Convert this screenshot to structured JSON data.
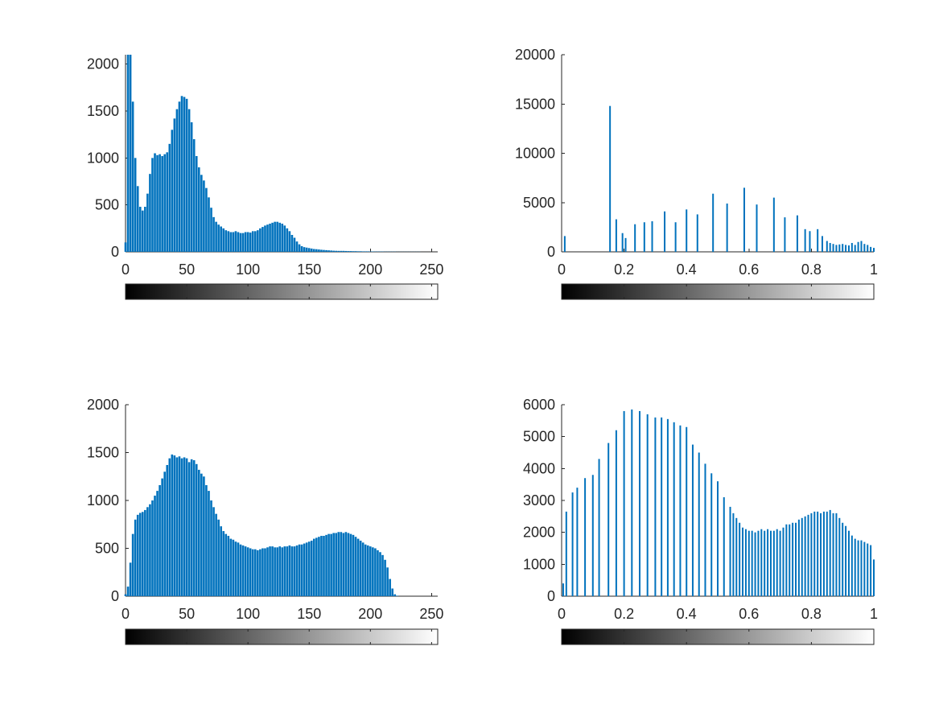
{
  "chart_data": [
    {
      "type": "bar",
      "title": "",
      "xlabel": "",
      "ylabel": "",
      "xlim": [
        0,
        255
      ],
      "ylim": [
        0,
        2100
      ],
      "xticks": [
        0,
        50,
        100,
        150,
        200,
        250
      ],
      "xtick_labels": [
        "0",
        "50",
        "100",
        "150",
        "200",
        "250"
      ],
      "yticks": [
        0,
        500,
        1000,
        1500,
        2000
      ],
      "ytick_labels": [
        "0",
        "500",
        "1000",
        "1500",
        "2000"
      ],
      "grid": false,
      "bar_color": "#0072bd",
      "colorbar": {
        "min": 0,
        "max": 255,
        "ticks": [
          0,
          50,
          100,
          150,
          200,
          250
        ],
        "colormap": "gray"
      },
      "series": [
        {
          "x": [
            0,
            2,
            4,
            6,
            8,
            10,
            12,
            14,
            16,
            18,
            20,
            22,
            24,
            26,
            28,
            30,
            32,
            34,
            36,
            38,
            40,
            42,
            44,
            46,
            48,
            50,
            52,
            54,
            56,
            58,
            60,
            62,
            64,
            66,
            68,
            70,
            72,
            74,
            76,
            78,
            80,
            82,
            84,
            86,
            88,
            90,
            92,
            94,
            96,
            98,
            100,
            102,
            104,
            106,
            108,
            110,
            112,
            114,
            116,
            118,
            120,
            122,
            124,
            126,
            128,
            130,
            132,
            134,
            136,
            138,
            140,
            142,
            144,
            146,
            148,
            150,
            152,
            154,
            156,
            158,
            160,
            162,
            164,
            166,
            168,
            170,
            172,
            174,
            176,
            178,
            180,
            182,
            184,
            186,
            188,
            190,
            192,
            194,
            196,
            198,
            200,
            202,
            204,
            206,
            208,
            210,
            212,
            214,
            216,
            218,
            220,
            222,
            224,
            226,
            228,
            230,
            232,
            234,
            236,
            238,
            240,
            242,
            244,
            246,
            248,
            250,
            252,
            254
          ],
          "values": [
            100,
            2100,
            2100,
            1600,
            1000,
            700,
            480,
            440,
            480,
            620,
            830,
            1000,
            1050,
            1030,
            1040,
            1020,
            1040,
            1060,
            1150,
            1300,
            1420,
            1520,
            1600,
            1660,
            1650,
            1630,
            1520,
            1380,
            1200,
            1020,
            900,
            820,
            760,
            680,
            580,
            470,
            370,
            320,
            290,
            270,
            250,
            230,
            220,
            210,
            210,
            220,
            210,
            200,
            200,
            210,
            210,
            205,
            220,
            220,
            230,
            250,
            265,
            280,
            290,
            300,
            310,
            320,
            320,
            310,
            300,
            280,
            250,
            220,
            180,
            150,
            110,
            80,
            60,
            50,
            45,
            40,
            35,
            30,
            28,
            25,
            22,
            20,
            18,
            16,
            14,
            12,
            11,
            10,
            10,
            10,
            9,
            8,
            8,
            7,
            7,
            6,
            6,
            5,
            5,
            5,
            4,
            4,
            3,
            3,
            3,
            3,
            2,
            2,
            2,
            2,
            2,
            1,
            1,
            1,
            1,
            1,
            1,
            1,
            1,
            1,
            1,
            0,
            0,
            0,
            0,
            0,
            0,
            0
          ]
        }
      ]
    },
    {
      "type": "bar",
      "title": "",
      "xlabel": "",
      "ylabel": "",
      "xlim": [
        0,
        1
      ],
      "ylim": [
        0,
        20000
      ],
      "xticks": [
        0,
        0.2,
        0.4,
        0.6,
        0.8,
        1
      ],
      "xtick_labels": [
        "0",
        "0.2",
        "0.4",
        "0.6",
        "0.8",
        "1"
      ],
      "yticks": [
        0,
        5000,
        10000,
        15000,
        20000
      ],
      "ytick_labels": [
        "0",
        "5000",
        "10000",
        "15000",
        "20000"
      ],
      "grid": false,
      "bar_color": "#0072bd",
      "colorbar": {
        "min": 0,
        "max": 1,
        "ticks": [
          0,
          0.2,
          0.4,
          0.6,
          0.8,
          1
        ],
        "colormap": "gray"
      },
      "series": [
        {
          "x": [
            0.01,
            0.155,
            0.175,
            0.195,
            0.205,
            0.235,
            0.265,
            0.29,
            0.33,
            0.365,
            0.4,
            0.435,
            0.485,
            0.53,
            0.585,
            0.625,
            0.68,
            0.715,
            0.755,
            0.78,
            0.795,
            0.82,
            0.835,
            0.85,
            0.86,
            0.87,
            0.88,
            0.89,
            0.9,
            0.91,
            0.92,
            0.93,
            0.94,
            0.95,
            0.96,
            0.97,
            0.98,
            0.99,
            1.0
          ],
          "values": [
            1600,
            14800,
            3300,
            1900,
            1400,
            2800,
            3000,
            3100,
            4100,
            3000,
            4300,
            3800,
            5900,
            4900,
            6500,
            4800,
            5500,
            3500,
            3700,
            2300,
            2100,
            2300,
            1600,
            1100,
            900,
            800,
            700,
            750,
            800,
            700,
            650,
            900,
            700,
            1000,
            1100,
            800,
            700,
            500,
            400
          ]
        }
      ]
    },
    {
      "type": "bar",
      "title": "",
      "xlabel": "",
      "ylabel": "",
      "xlim": [
        0,
        255
      ],
      "ylim": [
        0,
        2000
      ],
      "xticks": [
        0,
        50,
        100,
        150,
        200,
        250
      ],
      "xtick_labels": [
        "0",
        "50",
        "100",
        "150",
        "200",
        "250"
      ],
      "yticks": [
        0,
        500,
        1000,
        1500,
        2000
      ],
      "ytick_labels": [
        "0",
        "500",
        "1000",
        "1500",
        "2000"
      ],
      "grid": false,
      "bar_color": "#0072bd",
      "colorbar": {
        "min": 0,
        "max": 255,
        "ticks": [
          0,
          50,
          100,
          150,
          200,
          250
        ],
        "colormap": "gray"
      },
      "series": [
        {
          "x": [
            0,
            2,
            4,
            6,
            8,
            10,
            12,
            14,
            16,
            18,
            20,
            22,
            24,
            26,
            28,
            30,
            32,
            34,
            36,
            38,
            40,
            42,
            44,
            46,
            48,
            50,
            52,
            54,
            56,
            58,
            60,
            62,
            64,
            66,
            68,
            70,
            72,
            74,
            76,
            78,
            80,
            82,
            84,
            86,
            88,
            90,
            92,
            94,
            96,
            98,
            100,
            102,
            104,
            106,
            108,
            110,
            112,
            114,
            116,
            118,
            120,
            122,
            124,
            126,
            128,
            130,
            132,
            134,
            136,
            138,
            140,
            142,
            144,
            146,
            148,
            150,
            152,
            154,
            156,
            158,
            160,
            162,
            164,
            166,
            168,
            170,
            172,
            174,
            176,
            178,
            180,
            182,
            184,
            186,
            188,
            190,
            192,
            194,
            196,
            198,
            200,
            202,
            204,
            206,
            208,
            210,
            212,
            214,
            216,
            218,
            220,
            222,
            224,
            226,
            228,
            230,
            232,
            234,
            236,
            238,
            240,
            242,
            244,
            246,
            248,
            250,
            252,
            254
          ],
          "values": [
            20,
            100,
            350,
            650,
            800,
            850,
            870,
            880,
            900,
            930,
            960,
            1000,
            1050,
            1100,
            1160,
            1230,
            1300,
            1370,
            1440,
            1480,
            1470,
            1450,
            1460,
            1440,
            1450,
            1440,
            1400,
            1430,
            1420,
            1380,
            1320,
            1280,
            1250,
            1160,
            1100,
            1000,
            930,
            860,
            800,
            730,
            680,
            650,
            630,
            600,
            590,
            570,
            560,
            540,
            530,
            520,
            510,
            500,
            490,
            490,
            480,
            490,
            500,
            500,
            510,
            520,
            520,
            510,
            510,
            520,
            510,
            520,
            520,
            530,
            520,
            520,
            530,
            540,
            540,
            550,
            560,
            570,
            580,
            600,
            610,
            620,
            630,
            630,
            640,
            650,
            650,
            660,
            660,
            670,
            670,
            660,
            670,
            660,
            650,
            640,
            620,
            600,
            580,
            560,
            540,
            530,
            520,
            510,
            500,
            480,
            460,
            430,
            380,
            300,
            180,
            80,
            20,
            5,
            0,
            0,
            0,
            0,
            0,
            0,
            0,
            0,
            0,
            0,
            0,
            0,
            0,
            0,
            0,
            0
          ]
        }
      ]
    },
    {
      "type": "bar",
      "title": "",
      "xlabel": "",
      "ylabel": "",
      "xlim": [
        0,
        1
      ],
      "ylim": [
        0,
        6000
      ],
      "xticks": [
        0,
        0.2,
        0.4,
        0.6,
        0.8,
        1
      ],
      "xtick_labels": [
        "0",
        "0.2",
        "0.4",
        "0.6",
        "0.8",
        "1"
      ],
      "yticks": [
        0,
        1000,
        2000,
        3000,
        4000,
        5000,
        6000
      ],
      "ytick_labels": [
        "0",
        "1000",
        "2000",
        "3000",
        "4000",
        "5000",
        "6000"
      ],
      "grid": false,
      "bar_color": "#0072bd",
      "colorbar": {
        "min": 0,
        "max": 1,
        "ticks": [
          0,
          0.2,
          0.4,
          0.6,
          0.8,
          1
        ],
        "colormap": "gray"
      },
      "series": [
        {
          "x": [
            0.005,
            0.015,
            0.035,
            0.05,
            0.075,
            0.1,
            0.12,
            0.15,
            0.175,
            0.2,
            0.225,
            0.25,
            0.275,
            0.3,
            0.32,
            0.34,
            0.36,
            0.38,
            0.4,
            0.42,
            0.44,
            0.46,
            0.48,
            0.5,
            0.52,
            0.54,
            0.55,
            0.56,
            0.57,
            0.58,
            0.59,
            0.6,
            0.61,
            0.62,
            0.63,
            0.64,
            0.65,
            0.66,
            0.67,
            0.68,
            0.69,
            0.7,
            0.71,
            0.72,
            0.73,
            0.74,
            0.75,
            0.76,
            0.77,
            0.78,
            0.79,
            0.8,
            0.81,
            0.82,
            0.83,
            0.84,
            0.85,
            0.86,
            0.87,
            0.88,
            0.89,
            0.9,
            0.91,
            0.92,
            0.93,
            0.94,
            0.95,
            0.96,
            0.97,
            0.98,
            0.99,
            1.0
          ],
          "values": [
            400,
            2650,
            3250,
            3400,
            3700,
            3800,
            4300,
            4800,
            5200,
            5800,
            5850,
            5800,
            5700,
            5600,
            5600,
            5550,
            5450,
            5350,
            5300,
            4750,
            4500,
            4150,
            3850,
            3600,
            3100,
            2800,
            2600,
            2450,
            2300,
            2150,
            2100,
            2050,
            2050,
            2000,
            2050,
            2100,
            2050,
            2100,
            2050,
            2050,
            2100,
            2050,
            2150,
            2250,
            2250,
            2300,
            2300,
            2400,
            2450,
            2500,
            2550,
            2600,
            2650,
            2650,
            2600,
            2650,
            2650,
            2700,
            2600,
            2600,
            2450,
            2300,
            2200,
            2050,
            1900,
            1800,
            1750,
            1750,
            1700,
            1650,
            1600,
            1150
          ]
        }
      ]
    }
  ]
}
